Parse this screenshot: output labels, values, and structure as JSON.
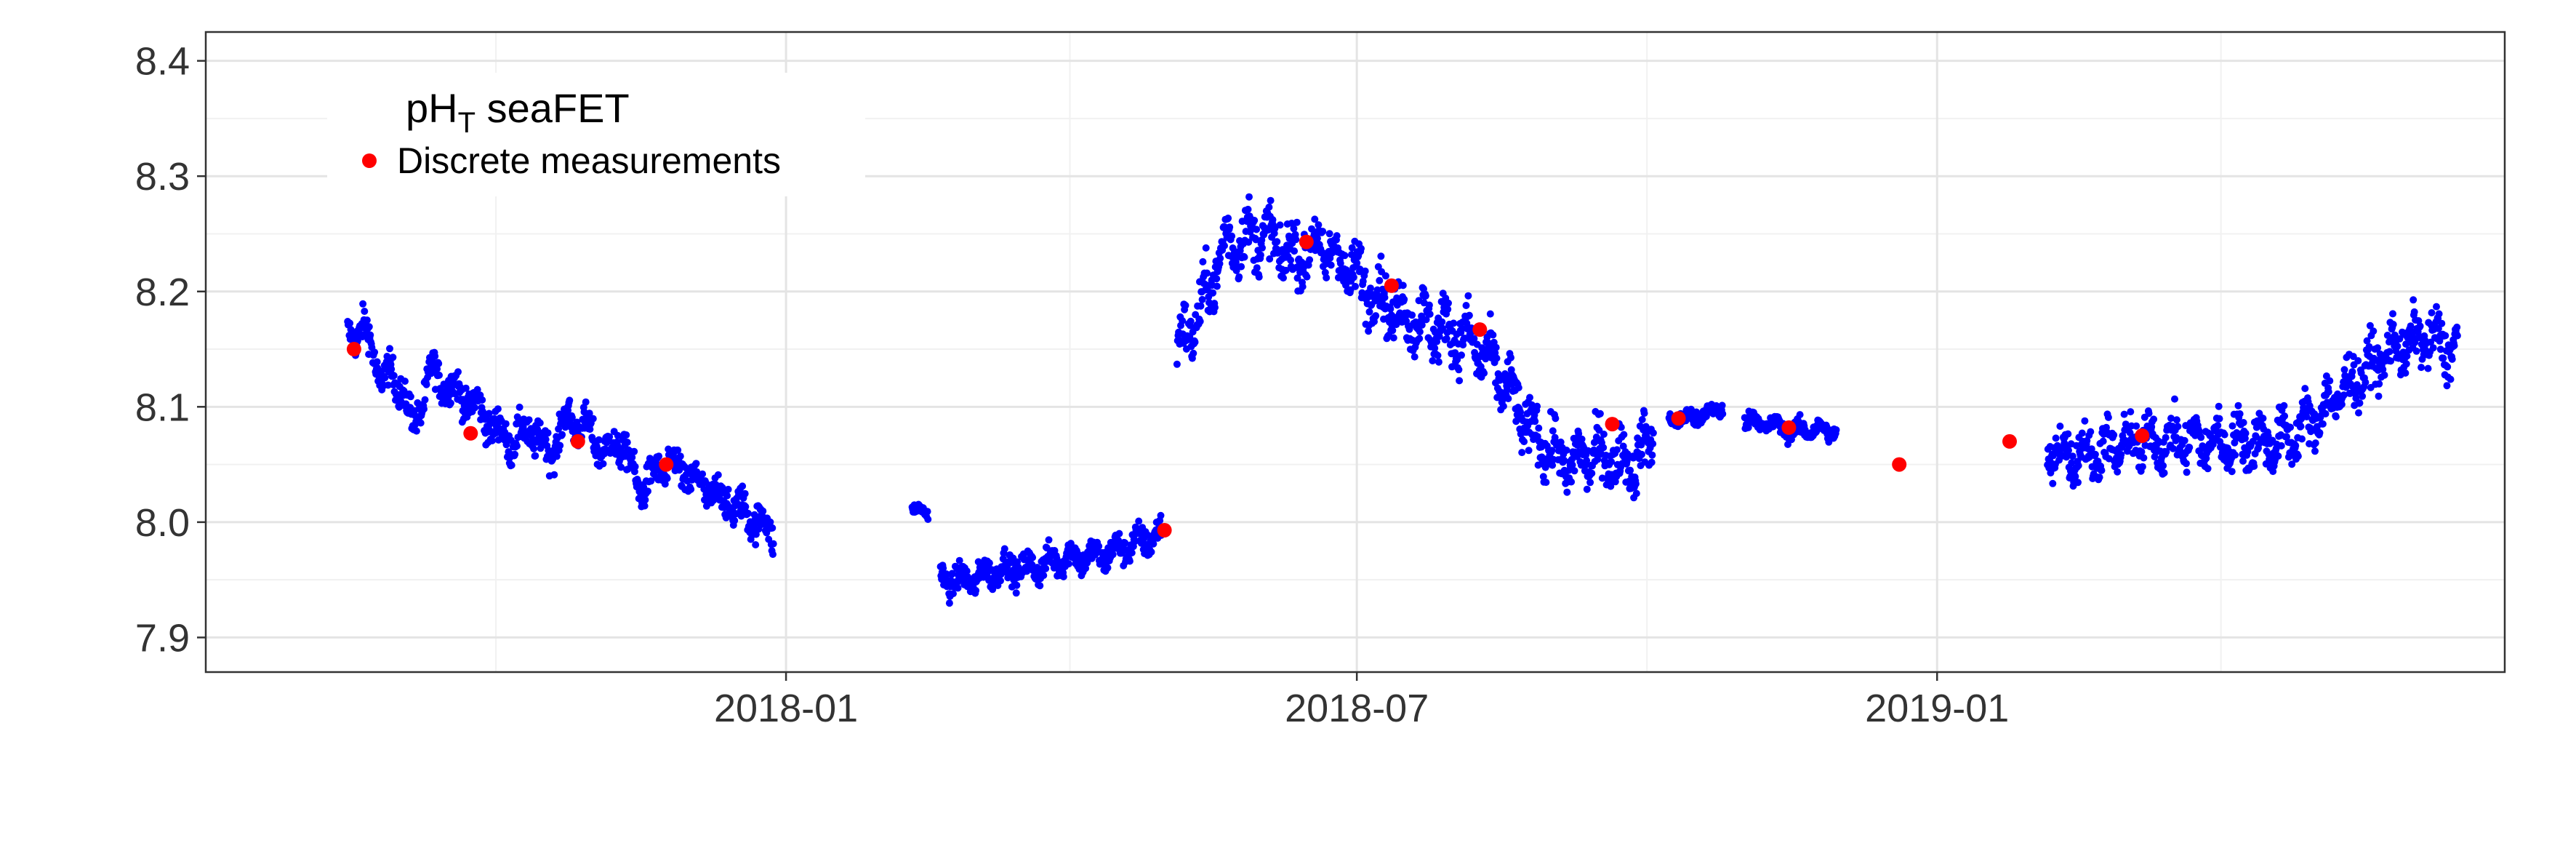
{
  "chart_data": {
    "type": "scatter",
    "title": "",
    "xlabel": "",
    "ylabel": "",
    "x_axis_type": "date",
    "xlim": [
      "2017-07-01",
      "2019-06-30"
    ],
    "ylim": [
      7.87,
      8.425
    ],
    "y_ticks": [
      7.9,
      8.0,
      8.1,
      8.2,
      8.3,
      8.4
    ],
    "y_tick_labels": [
      "7.9",
      "8.0",
      "8.1",
      "8.2",
      "8.3",
      "8.4"
    ],
    "x_ticks": [
      "2018-01-01",
      "2018-07-01",
      "2019-01-01"
    ],
    "x_tick_labels": [
      "2018-01",
      "2018-07",
      "2019-01"
    ],
    "grid": true,
    "legend": {
      "position": "top-left",
      "title_main": "pH",
      "title_sub": "T",
      "title_rest": " seaFET",
      "entry": "Discrete measurements"
    },
    "series": [
      {
        "name": "pH_T seaFET",
        "color": "#0000ff",
        "marker": "small-dot",
        "segments": [
          {
            "start": "2017-08-15",
            "end": "2017-12-28",
            "points": [
              [
                "2017-08-15",
                8.16
              ],
              [
                "2017-08-20",
                8.17
              ],
              [
                "2017-08-25",
                8.13
              ],
              [
                "2017-09-01",
                8.12
              ],
              [
                "2017-09-05",
                8.08
              ],
              [
                "2017-09-10",
                8.13
              ],
              [
                "2017-09-15",
                8.12
              ],
              [
                "2017-09-20",
                8.11
              ],
              [
                "2017-09-25",
                8.1
              ],
              [
                "2017-10-01",
                8.08
              ],
              [
                "2017-10-06",
                8.07
              ],
              [
                "2017-10-12",
                8.08
              ],
              [
                "2017-10-18",
                8.06
              ],
              [
                "2017-10-24",
                8.09
              ],
              [
                "2017-10-30",
                8.08
              ],
              [
                "2017-11-05",
                8.06
              ],
              [
                "2017-11-10",
                8.07
              ],
              [
                "2017-11-15",
                8.03
              ],
              [
                "2017-11-20",
                8.04
              ],
              [
                "2017-11-25",
                8.05
              ],
              [
                "2017-12-01",
                8.04
              ],
              [
                "2017-12-06",
                8.03
              ],
              [
                "2017-12-12",
                8.02
              ],
              [
                "2017-12-18",
                8.01
              ],
              [
                "2017-12-24",
                8.0
              ],
              [
                "2017-12-28",
                7.99
              ]
            ],
            "spread": 0.025
          },
          {
            "start": "2018-02-10",
            "end": "2018-02-15",
            "points": [
              [
                "2018-02-10",
                8.01
              ],
              [
                "2018-02-15",
                8.01
              ]
            ],
            "spread": 0.008
          },
          {
            "start": "2018-02-19",
            "end": "2018-04-30",
            "points": [
              [
                "2018-02-19",
                7.95
              ],
              [
                "2018-03-01",
                7.95
              ],
              [
                "2018-03-10",
                7.96
              ],
              [
                "2018-03-20",
                7.96
              ],
              [
                "2018-03-31",
                7.97
              ],
              [
                "2018-04-10",
                7.97
              ],
              [
                "2018-04-20",
                7.98
              ],
              [
                "2018-04-30",
                7.99
              ]
            ],
            "spread": 0.02
          },
          {
            "start": "2018-05-05",
            "end": "2018-10-03",
            "points": [
              [
                "2018-05-05",
                8.15
              ],
              [
                "2018-05-12",
                8.18
              ],
              [
                "2018-05-20",
                8.24
              ],
              [
                "2018-06-01",
                8.25
              ],
              [
                "2018-06-10",
                8.23
              ],
              [
                "2018-06-20",
                8.24
              ],
              [
                "2018-06-28",
                8.22
              ],
              [
                "2018-07-06",
                8.2
              ],
              [
                "2018-07-15",
                8.18
              ],
              [
                "2018-07-25",
                8.17
              ],
              [
                "2018-08-05",
                8.16
              ],
              [
                "2018-08-15",
                8.13
              ],
              [
                "2018-08-25",
                8.08
              ],
              [
                "2018-09-05",
                8.05
              ],
              [
                "2018-09-15",
                8.06
              ],
              [
                "2018-09-25",
                8.05
              ],
              [
                "2018-10-03",
                8.07
              ]
            ],
            "spread": 0.04
          },
          {
            "start": "2018-10-08",
            "end": "2018-10-25",
            "points": [
              [
                "2018-10-08",
                8.09
              ],
              [
                "2018-10-16",
                8.09
              ],
              [
                "2018-10-25",
                8.1
              ]
            ],
            "spread": 0.012
          },
          {
            "start": "2018-11-01",
            "end": "2018-11-30",
            "points": [
              [
                "2018-11-01",
                8.09
              ],
              [
                "2018-11-15",
                8.08
              ],
              [
                "2018-11-30",
                8.08
              ]
            ],
            "spread": 0.012
          },
          {
            "start": "2019-02-05",
            "end": "2019-06-15",
            "points": [
              [
                "2019-02-05",
                8.06
              ],
              [
                "2019-02-20",
                8.06
              ],
              [
                "2019-03-05",
                8.07
              ],
              [
                "2019-03-20",
                8.07
              ],
              [
                "2019-04-05",
                8.07
              ],
              [
                "2019-04-20",
                8.07
              ],
              [
                "2019-05-01",
                8.09
              ],
              [
                "2019-05-12",
                8.12
              ],
              [
                "2019-05-25",
                8.15
              ],
              [
                "2019-06-05",
                8.16
              ],
              [
                "2019-06-15",
                8.15
              ]
            ],
            "spread": 0.035
          }
        ]
      },
      {
        "name": "Discrete measurements",
        "color": "#ff0000",
        "marker": "dot",
        "points": [
          [
            "2017-08-17",
            8.15
          ],
          [
            "2017-09-23",
            8.077
          ],
          [
            "2017-10-27",
            8.07
          ],
          [
            "2017-11-24",
            8.05
          ],
          [
            "2018-05-01",
            7.993
          ],
          [
            "2018-06-15",
            8.243
          ],
          [
            "2018-07-12",
            8.205
          ],
          [
            "2018-08-09",
            8.167
          ],
          [
            "2018-09-20",
            8.085
          ],
          [
            "2018-10-11",
            8.09
          ],
          [
            "2018-11-15",
            8.082
          ],
          [
            "2018-12-20",
            8.05
          ],
          [
            "2019-01-24",
            8.07
          ],
          [
            "2019-03-07",
            8.075
          ]
        ]
      }
    ]
  }
}
